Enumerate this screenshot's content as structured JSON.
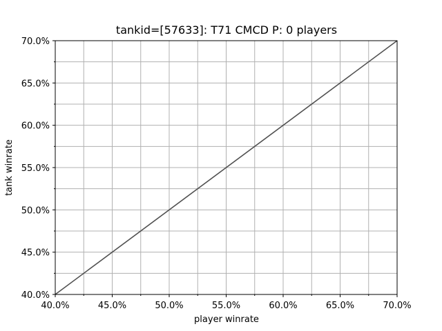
{
  "chart_data": {
    "type": "line",
    "title": "tankid=[57633]: T71 CMCD P: 0 players",
    "xlabel": "player winrate",
    "ylabel": "tank winrate",
    "xlim": [
      0.4,
      0.7
    ],
    "ylim": [
      0.4,
      0.7
    ],
    "xticks": [
      {
        "value": 0.4,
        "label": "40.0%"
      },
      {
        "value": 0.45,
        "label": "45.0%"
      },
      {
        "value": 0.5,
        "label": "50.0%"
      },
      {
        "value": 0.55,
        "label": "55.0%"
      },
      {
        "value": 0.6,
        "label": "60.0%"
      },
      {
        "value": 0.65,
        "label": "65.0%"
      },
      {
        "value": 0.7,
        "label": "70.0%"
      }
    ],
    "yticks": [
      {
        "value": 0.4,
        "label": "40.0%"
      },
      {
        "value": 0.45,
        "label": "45.0%"
      },
      {
        "value": 0.5,
        "label": "50.0%"
      },
      {
        "value": 0.55,
        "label": "55.0%"
      },
      {
        "value": 0.6,
        "label": "60.0%"
      },
      {
        "value": 0.65,
        "label": "65.0%"
      },
      {
        "value": 0.7,
        "label": "70.0%"
      }
    ],
    "minor_ticks": [
      0.425,
      0.475,
      0.525,
      0.575,
      0.625,
      0.675
    ],
    "grid": true,
    "series": [
      {
        "x": [
          0.4,
          0.7
        ],
        "y": [
          0.4,
          0.7
        ],
        "color": "#505050"
      }
    ]
  }
}
